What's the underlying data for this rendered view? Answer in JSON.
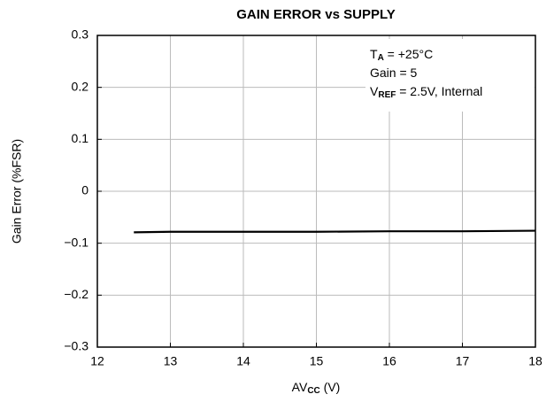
{
  "chart_data": {
    "type": "line",
    "title": "GAIN ERROR vs SUPPLY",
    "ylabel": "Gain Error (%FSR)",
    "xlabel": {
      "main": "AV",
      "sub": "CC",
      "unit": " (V)"
    },
    "annotations": [
      {
        "main": "T",
        "sub": "A",
        "rest": " = +25°C"
      },
      {
        "main": "Gain = 5"
      },
      {
        "main": "V",
        "sub": "REF",
        "rest": " = 2.5V, Internal"
      }
    ],
    "x": [
      12.5,
      13,
      14,
      15,
      16,
      17,
      18
    ],
    "values": [
      -0.079,
      -0.078,
      -0.078,
      -0.078,
      -0.077,
      -0.077,
      -0.076
    ],
    "color": "#000000",
    "xlim": [
      12,
      18
    ],
    "xticks": [
      12,
      13,
      14,
      15,
      16,
      17,
      18
    ],
    "ylim": [
      -0.3,
      0.3
    ],
    "yticks": [
      {
        "value": -0.3,
        "label": "−0.3"
      },
      {
        "value": -0.2,
        "label": "−0.2"
      },
      {
        "value": -0.1,
        "label": "−0.1"
      },
      0,
      0.1,
      0.2,
      0.3
    ],
    "grid": true
  }
}
